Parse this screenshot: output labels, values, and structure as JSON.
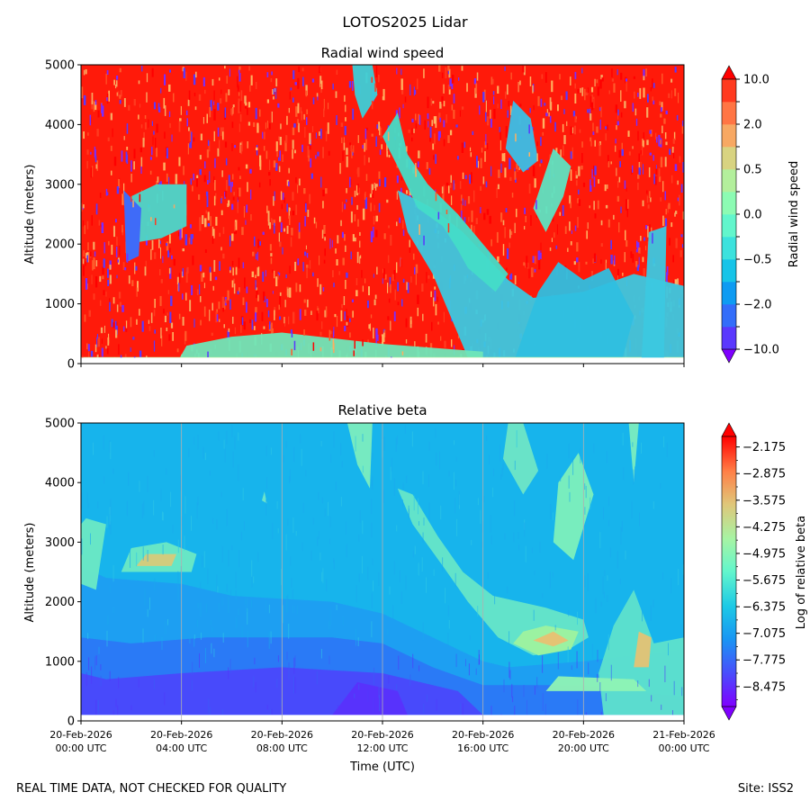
{
  "figure": {
    "suptitle": "LOTOS2025 Lidar",
    "footer_left": "REAL TIME DATA, NOT CHECKED FOR QUALITY",
    "footer_right": "Site: ISS2"
  },
  "chart_data": [
    {
      "type": "heatmap",
      "title": "Radial wind speed",
      "ylabel": "Altitude (meters)",
      "xlabel": "",
      "ylim": [
        0,
        5000
      ],
      "yticks": [
        0,
        1000,
        2000,
        3000,
        4000,
        5000
      ],
      "xlim_hours": [
        0,
        24
      ],
      "xtick_hours": [
        0,
        4,
        8,
        12,
        16,
        20,
        24
      ],
      "colorbar": {
        "label": "Radial wind speed",
        "levels": [
          -10.0,
          -5.0,
          -2.0,
          -1.0,
          -0.5,
          -0.2,
          0.0,
          0.2,
          0.5,
          1.0,
          2.0,
          5.0,
          10.0
        ],
        "tick_labels": [
          "10.0",
          "2.0",
          "0.5",
          "0.0",
          "−0.5",
          "−2.0",
          "−10.0"
        ],
        "tick_values": [
          10.0,
          2.0,
          0.5,
          0.0,
          -0.5,
          -2.0,
          -10.0
        ],
        "colors": [
          "#7f00ff",
          "#5a38fd",
          "#336dfa",
          "#0e9bf2",
          "#16c4e8",
          "#3ce2dd",
          "#62f6cc",
          "#8cfbb3",
          "#b3ef9c",
          "#d8d381",
          "#f7a863",
          "#ff7544",
          "#ff3a1f",
          "#ff0000"
        ]
      }
    },
    {
      "type": "heatmap",
      "title": "Relative beta",
      "ylabel": "Altitude (meters)",
      "xlabel": "Time (UTC)",
      "ylim": [
        0,
        5000
      ],
      "yticks": [
        0,
        1000,
        2000,
        3000,
        4000,
        5000
      ],
      "xlim_hours": [
        0,
        24
      ],
      "xtick_hours": [
        0,
        4,
        8,
        12,
        16,
        20,
        24
      ],
      "xtick_labels": [
        [
          "20-Feb-2026",
          "00:00 UTC"
        ],
        [
          "20-Feb-2026",
          "04:00 UTC"
        ],
        [
          "20-Feb-2026",
          "08:00 UTC"
        ],
        [
          "20-Feb-2026",
          "12:00 UTC"
        ],
        [
          "20-Feb-2026",
          "16:00 UTC"
        ],
        [
          "20-Feb-2026",
          "20:00 UTC"
        ],
        [
          "21-Feb-2026",
          "00:00 UTC"
        ]
      ],
      "colorbar": {
        "label": "Log of relative beta",
        "range": [
          -9.0,
          -1.9
        ],
        "tick_values": [
          -2.175,
          -2.875,
          -3.575,
          -4.275,
          -4.975,
          -5.675,
          -6.375,
          -7.075,
          -7.775,
          -8.475
        ],
        "tick_labels": [
          "−2.175",
          "−2.875",
          "−3.575",
          "−4.275",
          "−4.975",
          "−5.675",
          "−6.375",
          "−7.075",
          "−7.775",
          "−8.475"
        ]
      }
    }
  ]
}
